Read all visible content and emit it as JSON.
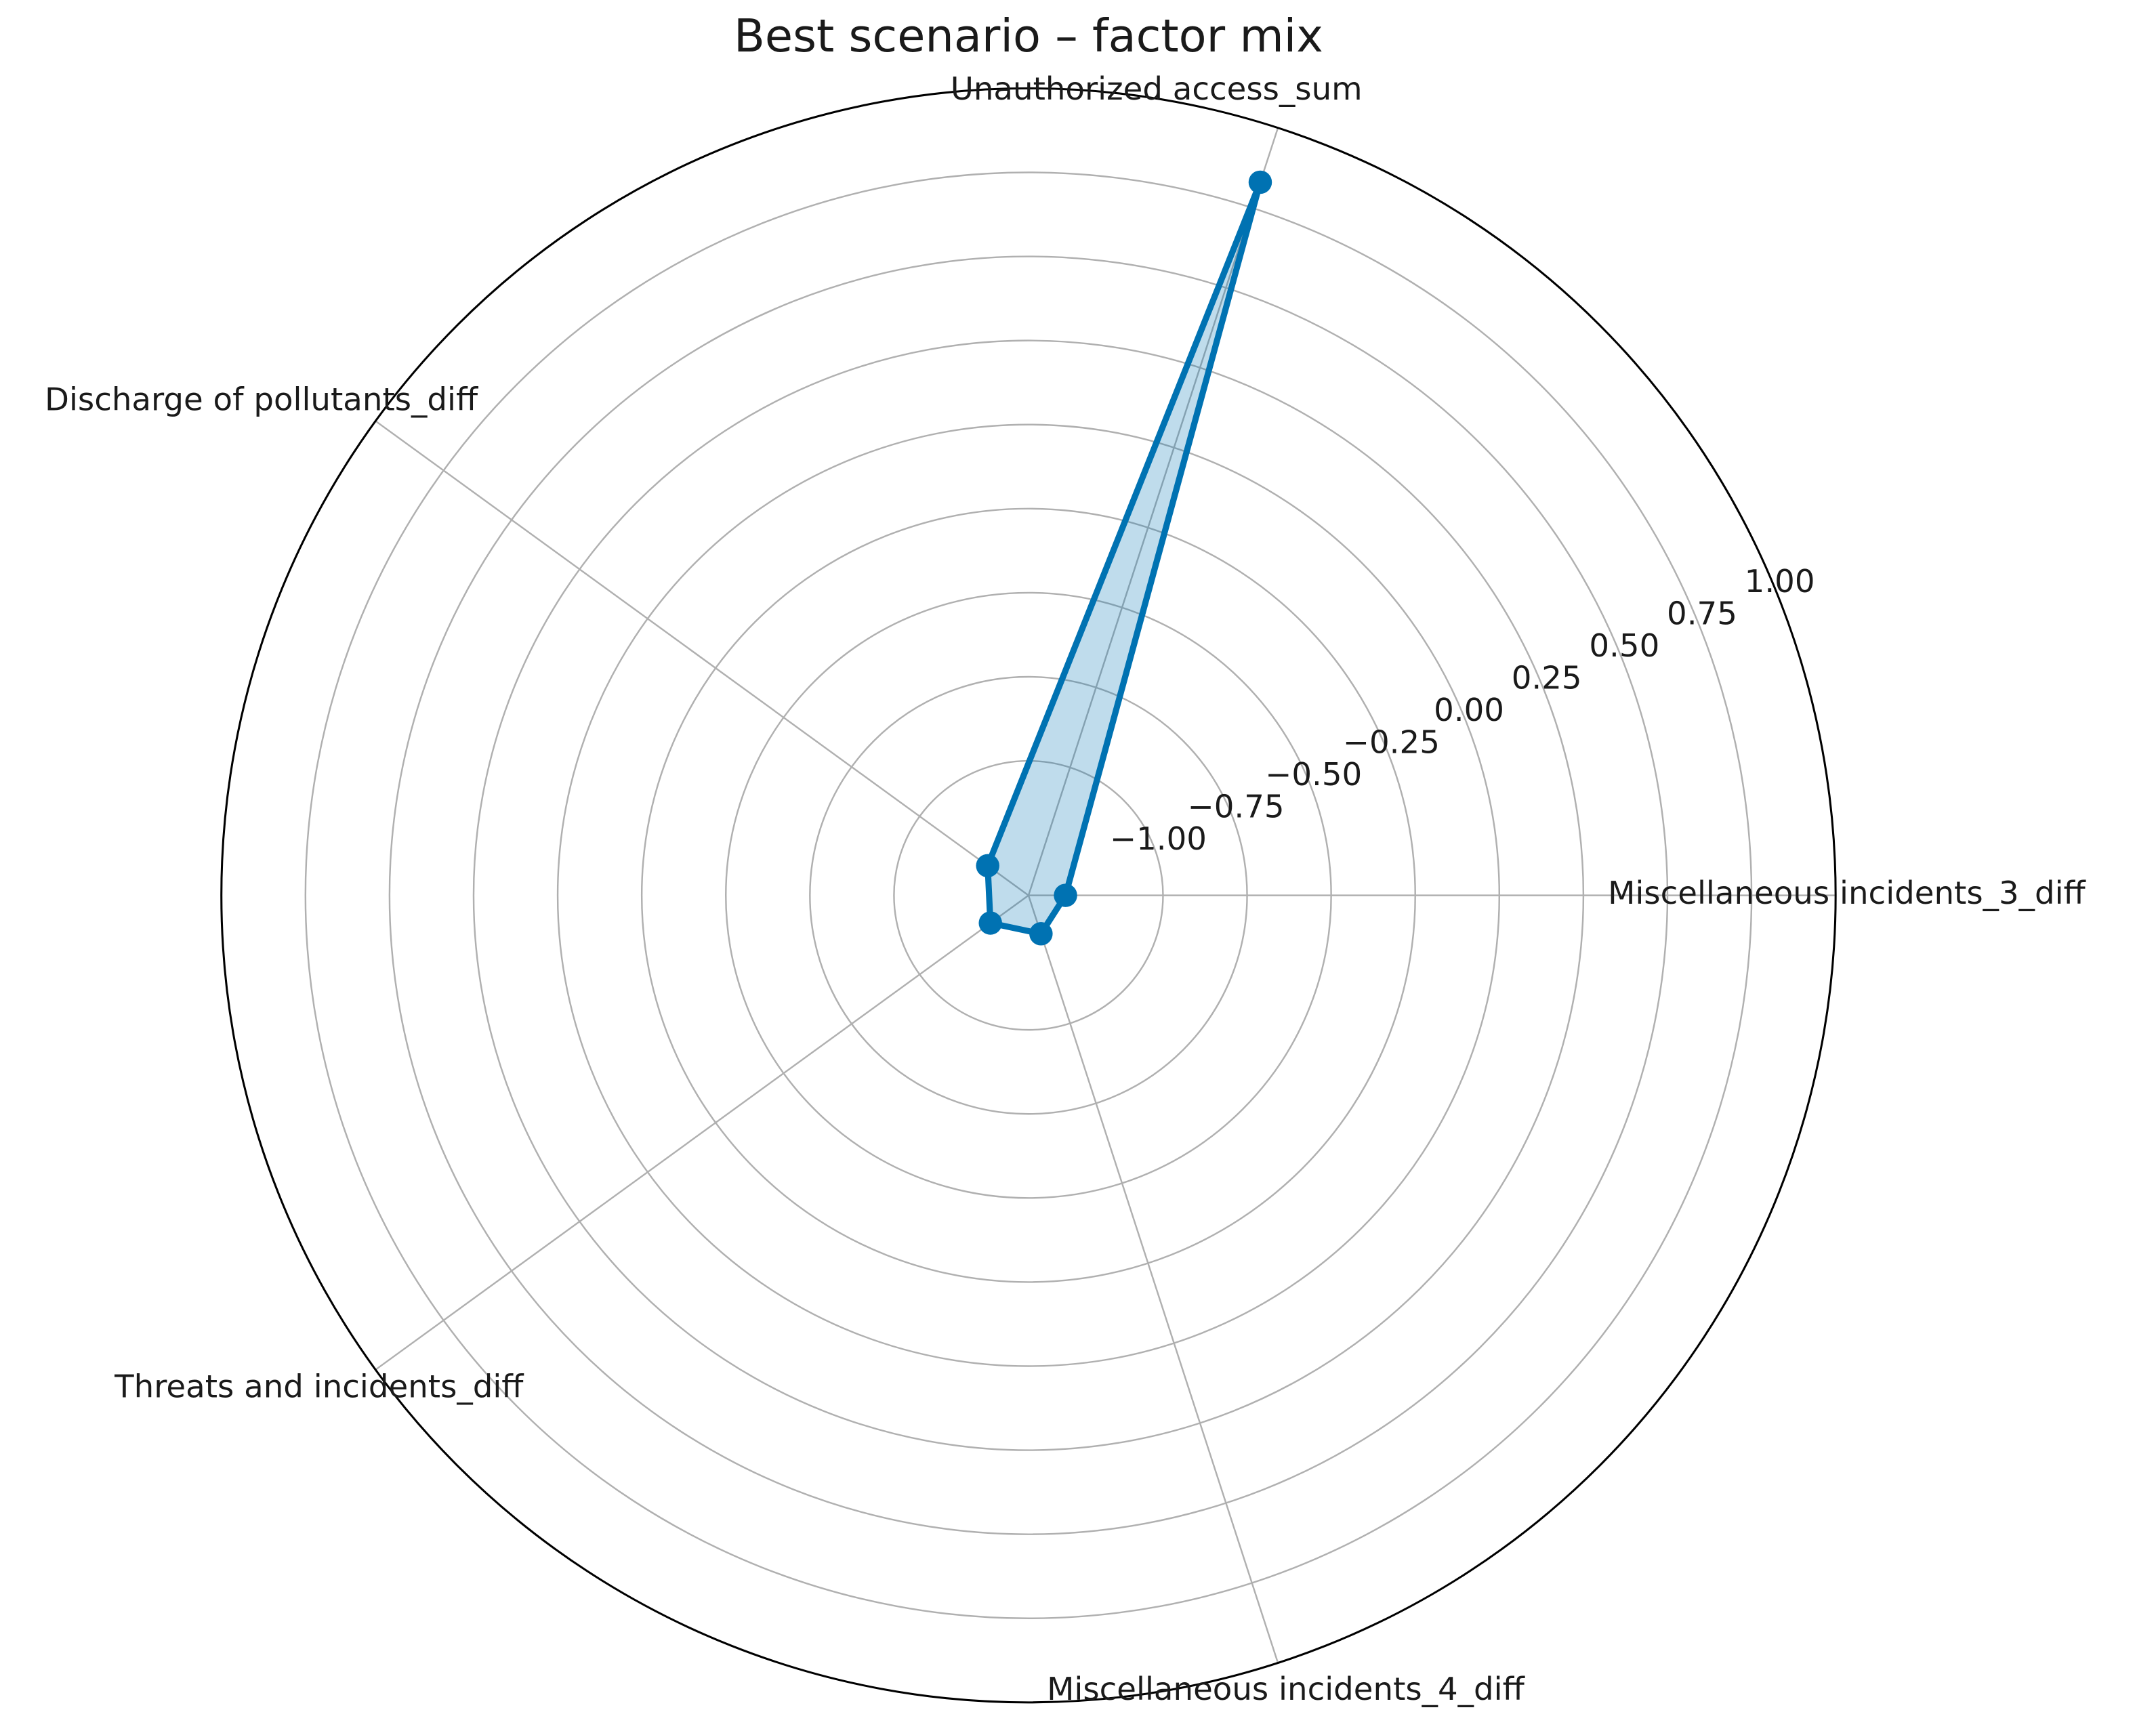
{
  "chart_data": {
    "type": "radar",
    "title": "Best scenario – factor mix",
    "categories": [
      "Miscellaneous incidents_3_diff",
      "Unauthorized access_sum",
      "Discharge of pollutants_diff",
      "Threats and incidents_diff",
      "Miscellaneous incidents_4_diff"
    ],
    "values": [
      -1.29,
      0.83,
      -1.25,
      -1.26,
      -1.28
    ],
    "color": "#0072b2",
    "ylim": [
      -1.4,
      1.0
    ],
    "yticks": [
      {
        "value": -1,
        "label": "−1.00"
      },
      {
        "value": -0.75,
        "label": "−0.75"
      },
      {
        "value": -0.5,
        "label": "−0.50"
      },
      {
        "value": -0.25,
        "label": "−0.25"
      },
      {
        "value": 0,
        "label": "0.00"
      },
      {
        "value": 0.25,
        "label": "0.25"
      },
      {
        "value": 0.5,
        "label": "0.50"
      },
      {
        "value": 0.75,
        "label": "0.75"
      },
      {
        "value": 1,
        "label": "1.00"
      }
    ],
    "grid": true
  }
}
